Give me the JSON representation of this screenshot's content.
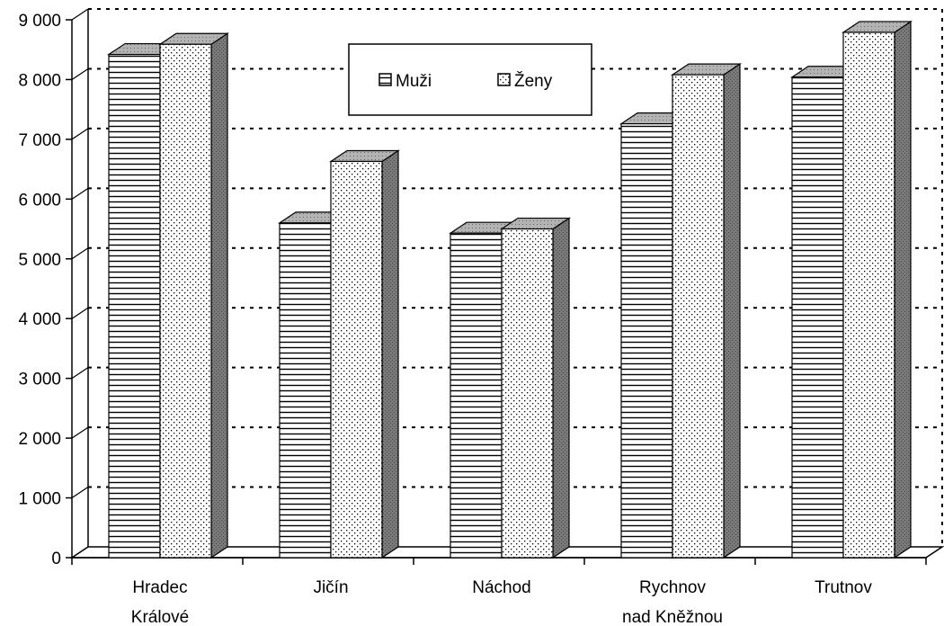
{
  "chart_data": {
    "type": "bar",
    "categories": [
      [
        "Hradec",
        "Králové"
      ],
      [
        "Jičín"
      ],
      [
        "Náchod"
      ],
      [
        "Rychnov",
        "nad Kněžnou"
      ],
      [
        "Trutnov"
      ]
    ],
    "series": [
      {
        "name": "Muži",
        "values": [
          8420,
          5600,
          5430,
          7260,
          8040
        ],
        "pattern": "horizontal-lines"
      },
      {
        "name": "Ženy",
        "values": [
          8590,
          6630,
          5500,
          8080,
          8790
        ],
        "pattern": "dots"
      }
    ],
    "ylim": [
      0,
      9000
    ],
    "yticks": [
      "0",
      "1 000",
      "2 000",
      "3 000",
      "4 000",
      "5 000",
      "6 000",
      "7 000",
      "8 000",
      "9 000"
    ],
    "ytick_values": [
      0,
      1000,
      2000,
      3000,
      4000,
      5000,
      6000,
      7000,
      8000,
      9000
    ],
    "title": "",
    "xlabel": "",
    "ylabel": "",
    "grid": true,
    "legend": "top-center",
    "colors": {
      "bar_face": "#ffffff",
      "bar_top": "#b3b3b3",
      "bar_side": "#7a7a7a",
      "line": "#000000"
    }
  }
}
